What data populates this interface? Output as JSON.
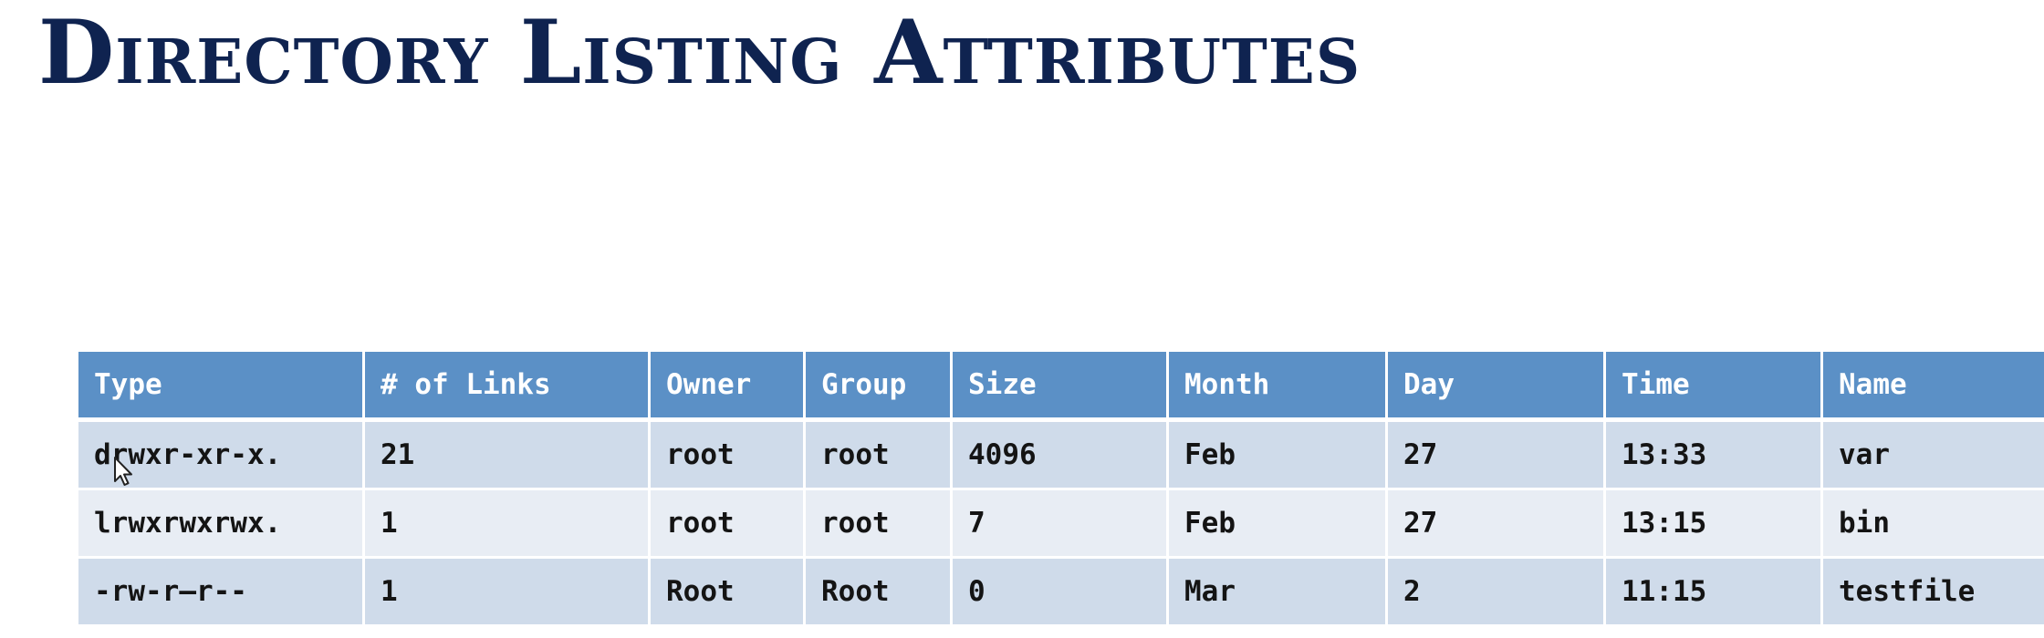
{
  "slide": {
    "title": "Directory Listing Attributes"
  },
  "table": {
    "headers": [
      "Type",
      "# of Links",
      "Owner",
      "Group",
      "Size",
      "Month",
      "Day",
      "Time",
      "Name"
    ],
    "rows": [
      [
        "drwxr-xr-x.",
        "21",
        "root",
        "root",
        "4096",
        "Feb",
        "27",
        "13:33",
        "var"
      ],
      [
        "lrwxrwxrwx.",
        "1",
        "root",
        "root",
        "7",
        "Feb",
        "27",
        "13:15",
        "bin"
      ],
      [
        "-rw-r—r--",
        "1",
        "Root",
        "Root",
        "0",
        "Mar",
        "2",
        "11:15",
        "testfile"
      ]
    ]
  },
  "colors": {
    "title": "#0f2350",
    "header_bg": "#5b90c6",
    "row_odd_bg": "#cfdbea",
    "row_even_bg": "#e8edf4"
  },
  "icons": {
    "cursor": "mouse-pointer-icon"
  }
}
